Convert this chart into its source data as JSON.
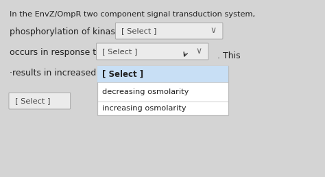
{
  "bg_color": "#d4d4d4",
  "title_line1": "In the EnvZ/OmpR two component signal transduction system,",
  "line2_text": "phosphorylation of kinase",
  "line2_select": "[ Select ]",
  "line3_text": "occurs in response to",
  "line3_select": "[ Select ]",
  "line3_suffix": ". This",
  "line4_text": "·results in increased ex",
  "dropdown_select": "[ Select ]",
  "dropdown_item1": "decreasing osmolarity",
  "dropdown_item2": "increasing osmolarity",
  "line5_select": "[ Select ]",
  "text_color": "#222222",
  "select_color": "#444444",
  "dropdown_bg": "#ffffff",
  "dropdown_highlight": "#c8dff5",
  "dropdown_border": "#bbbbbb",
  "box_bg": "#ebebeb",
  "box_border": "#aaaaaa"
}
